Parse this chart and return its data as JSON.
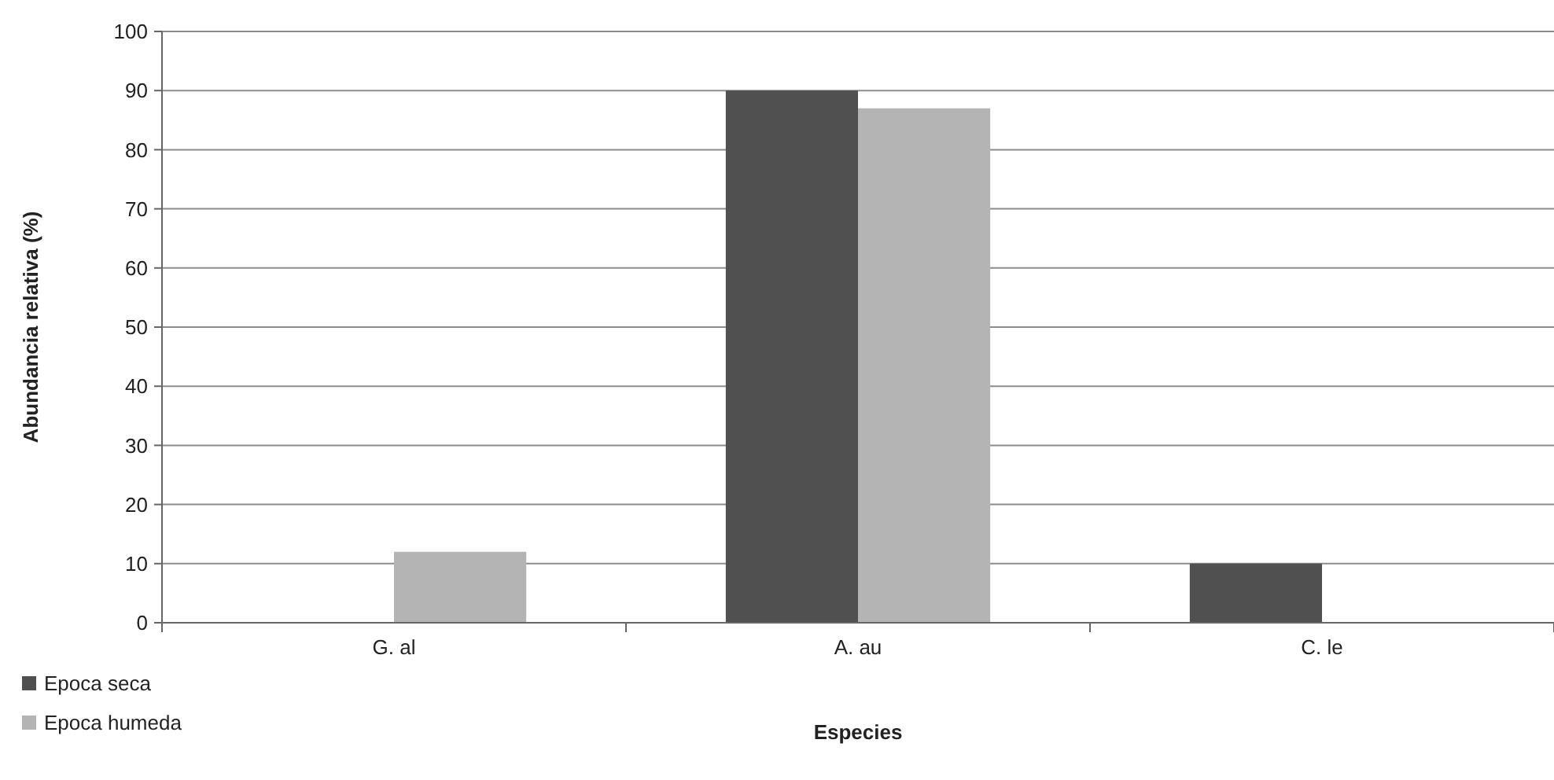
{
  "chart_data": {
    "type": "bar",
    "xlabel": "Especies",
    "ylabel": "Abundancia relativa (%)",
    "categories": [
      "G. al",
      "A. au",
      "C. le"
    ],
    "series": [
      {
        "name": "Epoca seca",
        "color": "#505050",
        "values": [
          null,
          90,
          10
        ]
      },
      {
        "name": "Epoca humeda",
        "color": "#b4b4b4",
        "values": [
          12,
          87,
          null
        ]
      }
    ],
    "ylim": [
      0,
      100
    ],
    "yticks": [
      0,
      10,
      20,
      30,
      40,
      50,
      60,
      70,
      80,
      90,
      100
    ],
    "grid": "y",
    "legend": "bottom left"
  }
}
